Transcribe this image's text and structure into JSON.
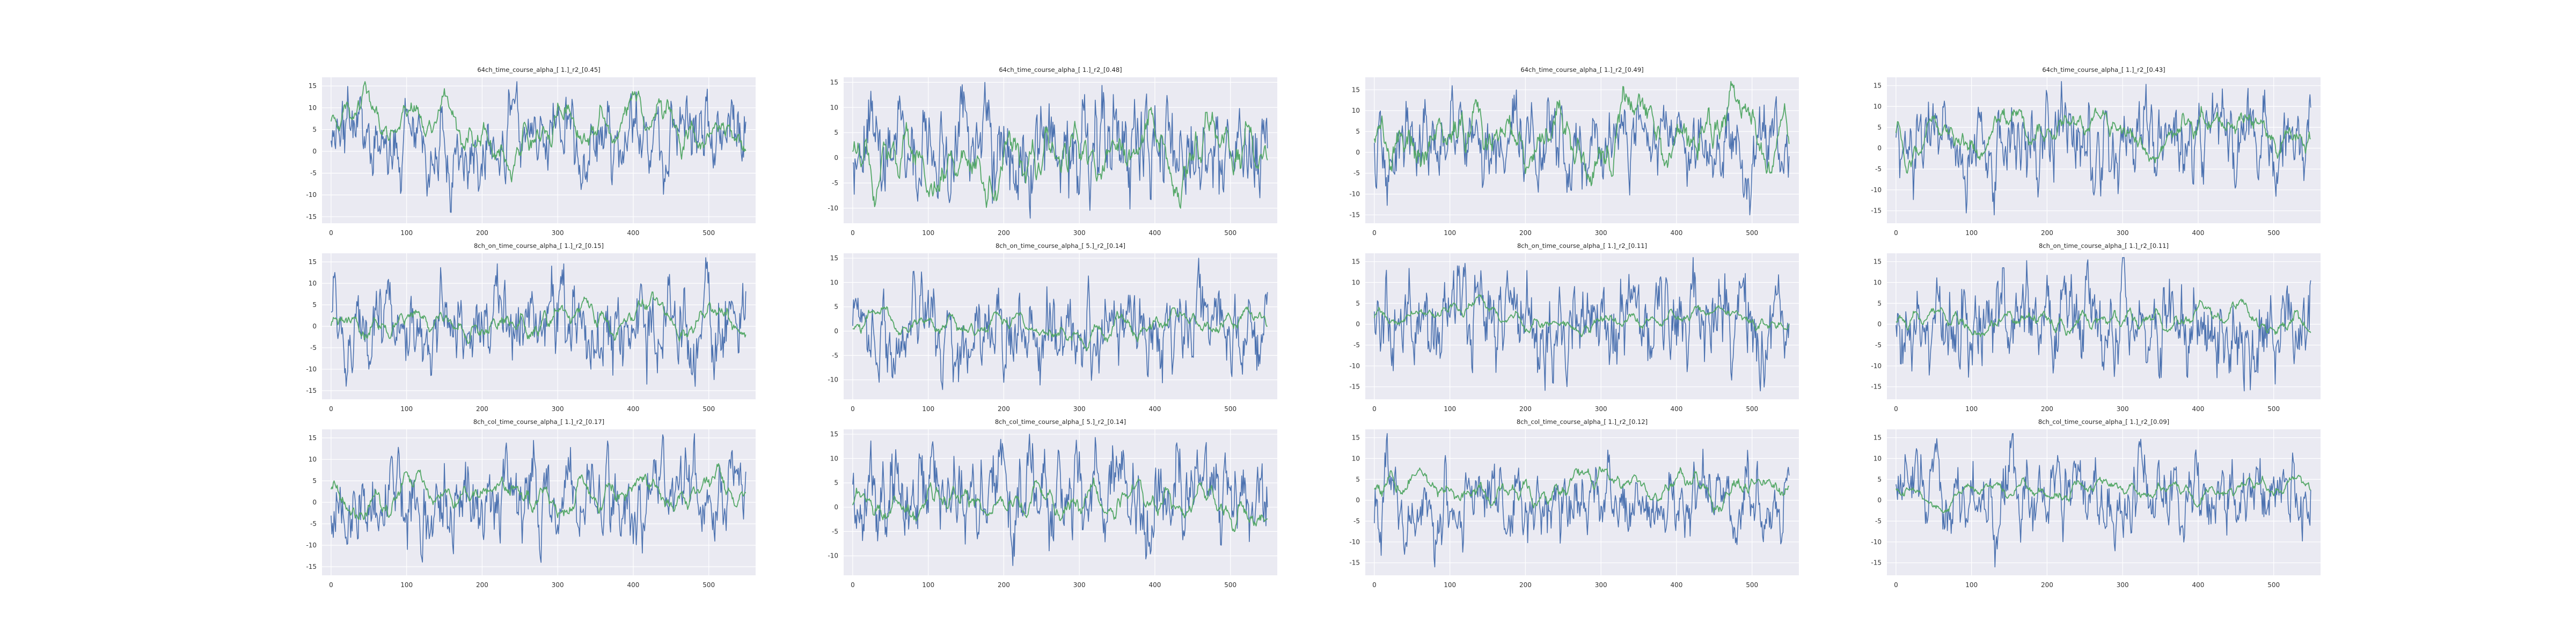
{
  "figure": {
    "background": "#ffffff",
    "axes_face": "#eaeaf2",
    "grid_color": "#ffffff",
    "series_colors": [
      "#4c72b0",
      "#55a868"
    ]
  },
  "chart_data": [
    {
      "type": "line",
      "title": "64ch_time_course_alpha_[ 1.]_r2_[0.45]",
      "xlim": [
        -12,
        562
      ],
      "ylim": [
        -16.5,
        17
      ],
      "xticks": [
        0,
        100,
        200,
        300,
        400,
        500
      ],
      "yticks": [
        -15,
        -10,
        -5,
        0,
        5,
        10,
        15
      ],
      "grid": true,
      "legend": "none",
      "series": [
        {
          "color": "#4c72b0",
          "n": 550,
          "range": [
            -14,
            16
          ],
          "seed": 1
        },
        {
          "color": "#55a868",
          "n": 550,
          "range": [
            -7,
            16
          ],
          "seed": 2
        }
      ]
    },
    {
      "type": "line",
      "title": "64ch_time_course_alpha_[ 1.]_r2_[0.48]",
      "xlim": [
        -12,
        562
      ],
      "ylim": [
        -13,
        16
      ],
      "xticks": [
        0,
        100,
        200,
        300,
        400,
        500
      ],
      "yticks": [
        -10,
        -5,
        0,
        5,
        10,
        15
      ],
      "grid": true,
      "legend": "none",
      "series": [
        {
          "color": "#4c72b0",
          "n": 550,
          "range": [
            -12,
            15
          ],
          "seed": 3
        },
        {
          "color": "#55a868",
          "n": 550,
          "range": [
            -10,
            10
          ],
          "seed": 4
        }
      ]
    },
    {
      "type": "line",
      "title": "64ch_time_course_alpha_[ 1.]_r2_[0.49]",
      "xlim": [
        -12,
        562
      ],
      "ylim": [
        -17,
        18
      ],
      "xticks": [
        0,
        100,
        200,
        300,
        400,
        500
      ],
      "yticks": [
        -15,
        -10,
        -5,
        0,
        5,
        10,
        15
      ],
      "grid": true,
      "legend": "none",
      "series": [
        {
          "color": "#4c72b0",
          "n": 550,
          "range": [
            -15,
            16
          ],
          "seed": 5
        },
        {
          "color": "#55a868",
          "n": 550,
          "range": [
            -8,
            17
          ],
          "seed": 6
        }
      ]
    },
    {
      "type": "line",
      "title": "64ch_time_course_alpha_[ 1.]_r2_[0.43]",
      "xlim": [
        -12,
        562
      ],
      "ylim": [
        -18,
        17
      ],
      "xticks": [
        0,
        100,
        200,
        300,
        400,
        500
      ],
      "yticks": [
        -15,
        -10,
        -5,
        0,
        5,
        10,
        15
      ],
      "grid": true,
      "legend": "none",
      "series": [
        {
          "color": "#4c72b0",
          "n": 550,
          "range": [
            -16,
            16
          ],
          "seed": 7
        },
        {
          "color": "#55a868",
          "n": 550,
          "range": [
            -6,
            10
          ],
          "seed": 8
        }
      ]
    },
    {
      "type": "line",
      "title": "8ch_on_time_course_alpha_[ 1.]_r2_[0.15]",
      "xlim": [
        -12,
        562
      ],
      "ylim": [
        -17,
        17
      ],
      "xticks": [
        0,
        100,
        200,
        300,
        400,
        500
      ],
      "yticks": [
        -15,
        -10,
        -5,
        0,
        5,
        10,
        15
      ],
      "grid": true,
      "legend": "none",
      "series": [
        {
          "color": "#4c72b0",
          "n": 550,
          "range": [
            -14,
            16
          ],
          "seed": 9
        },
        {
          "color": "#55a868",
          "n": 550,
          "range": [
            -4,
            8
          ],
          "seed": 10
        }
      ]
    },
    {
      "type": "line",
      "title": "8ch_on_time_course_alpha_[ 5.]_r2_[0.14]",
      "xlim": [
        -12,
        562
      ],
      "ylim": [
        -14,
        16
      ],
      "xticks": [
        0,
        100,
        200,
        300,
        400,
        500
      ],
      "yticks": [
        -10,
        -5,
        0,
        5,
        10,
        15
      ],
      "grid": true,
      "legend": "none",
      "series": [
        {
          "color": "#4c72b0",
          "n": 550,
          "range": [
            -12,
            15
          ],
          "seed": 11
        },
        {
          "color": "#55a868",
          "n": 550,
          "range": [
            -4,
            5
          ],
          "seed": 12
        }
      ]
    },
    {
      "type": "line",
      "title": "8ch_on_time_course_alpha_[ 1.]_r2_[0.11]",
      "xlim": [
        -12,
        562
      ],
      "ylim": [
        -18,
        17
      ],
      "xticks": [
        0,
        100,
        200,
        300,
        400,
        500
      ],
      "yticks": [
        -15,
        -10,
        -5,
        0,
        5,
        10,
        15
      ],
      "grid": true,
      "legend": "none",
      "series": [
        {
          "color": "#4c72b0",
          "n": 550,
          "range": [
            -16,
            16
          ],
          "seed": 13
        },
        {
          "color": "#55a868",
          "n": 550,
          "range": [
            -3,
            7
          ],
          "seed": 14
        }
      ]
    },
    {
      "type": "line",
      "title": "8ch_on_time_course_alpha_[ 1.]_r2_[0.11]",
      "xlim": [
        -12,
        562
      ],
      "ylim": [
        -18,
        17
      ],
      "xticks": [
        0,
        100,
        200,
        300,
        400,
        500
      ],
      "yticks": [
        -15,
        -10,
        -5,
        0,
        5,
        10,
        15
      ],
      "grid": true,
      "legend": "none",
      "series": [
        {
          "color": "#4c72b0",
          "n": 550,
          "range": [
            -16,
            16
          ],
          "seed": 15
        },
        {
          "color": "#55a868",
          "n": 550,
          "range": [
            -3,
            6
          ],
          "seed": 16
        }
      ]
    },
    {
      "type": "line",
      "title": "8ch_col_time_course_alpha_[ 1.]_r2_[0.17]",
      "xlim": [
        -12,
        562
      ],
      "ylim": [
        -17,
        17
      ],
      "xticks": [
        0,
        100,
        200,
        300,
        400,
        500
      ],
      "yticks": [
        -15,
        -10,
        -5,
        0,
        5,
        10,
        15
      ],
      "grid": true,
      "legend": "none",
      "series": [
        {
          "color": "#4c72b0",
          "n": 550,
          "range": [
            -14,
            16
          ],
          "seed": 17
        },
        {
          "color": "#55a868",
          "n": 550,
          "range": [
            -4,
            9
          ],
          "seed": 18
        }
      ]
    },
    {
      "type": "line",
      "title": "8ch_col_time_course_alpha_[ 5.]_r2_[0.14]",
      "xlim": [
        -12,
        562
      ],
      "ylim": [
        -14,
        16
      ],
      "xticks": [
        0,
        100,
        200,
        300,
        400,
        500
      ],
      "yticks": [
        -10,
        -5,
        0,
        5,
        10,
        15
      ],
      "grid": true,
      "legend": "none",
      "series": [
        {
          "color": "#4c72b0",
          "n": 550,
          "range": [
            -12,
            15
          ],
          "seed": 19
        },
        {
          "color": "#55a868",
          "n": 550,
          "range": [
            -5,
            6
          ],
          "seed": 20
        }
      ]
    },
    {
      "type": "line",
      "title": "8ch_col_time_course_alpha_[ 1.]_r2_[0.12]",
      "xlim": [
        -12,
        562
      ],
      "ylim": [
        -18,
        17
      ],
      "xticks": [
        0,
        100,
        200,
        300,
        400,
        500
      ],
      "yticks": [
        -15,
        -10,
        -5,
        0,
        5,
        10,
        15
      ],
      "grid": true,
      "legend": "none",
      "series": [
        {
          "color": "#4c72b0",
          "n": 550,
          "range": [
            -16,
            16
          ],
          "seed": 21
        },
        {
          "color": "#55a868",
          "n": 550,
          "range": [
            -3,
            8
          ],
          "seed": 22
        }
      ]
    },
    {
      "type": "line",
      "title": "8ch_col_time_course_alpha_[ 1.]_r2_[0.09]",
      "xlim": [
        -12,
        562
      ],
      "ylim": [
        -18,
        17
      ],
      "xticks": [
        0,
        100,
        200,
        300,
        400,
        500
      ],
      "yticks": [
        -15,
        -10,
        -5,
        0,
        5,
        10,
        15
      ],
      "grid": true,
      "legend": "none",
      "series": [
        {
          "color": "#4c72b0",
          "n": 550,
          "range": [
            -16,
            16
          ],
          "seed": 23
        },
        {
          "color": "#55a868",
          "n": 550,
          "range": [
            -3,
            6
          ],
          "seed": 24
        }
      ]
    }
  ]
}
